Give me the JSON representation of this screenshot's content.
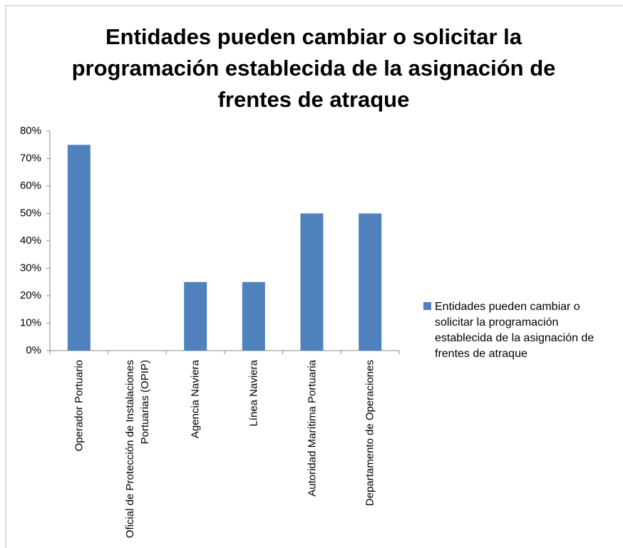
{
  "chart_data": {
    "type": "bar",
    "title": "Entidades pueden cambiar o solicitar la programación establecida de la asignación de frentes de atraque",
    "categories": [
      "Operador Portuario",
      "Oficial de Protección de Instalaciones Portuarias (OPIP)",
      "Agencia Naviera",
      "Línea Naviera",
      "Autoridad Marítima Portuaria",
      "Departamento de Operaciones"
    ],
    "series": [
      {
        "name": "Entidades pueden cambiar o solicitar la programación establecida de la asignación de frentes de atraque",
        "color": "#4f81bd",
        "values": [
          75,
          0,
          25,
          25,
          50,
          50
        ]
      }
    ],
    "ylim": [
      0,
      80
    ],
    "yticks": [
      {
        "value": 0,
        "label": "0%"
      },
      {
        "value": 10,
        "label": "10%"
      },
      {
        "value": 20,
        "label": "20%"
      },
      {
        "value": 30,
        "label": "30%"
      },
      {
        "value": 40,
        "label": "40%"
      },
      {
        "value": 50,
        "label": "50%"
      },
      {
        "value": 60,
        "label": "60%"
      },
      {
        "value": 70,
        "label": "70%"
      },
      {
        "value": 80,
        "label": "80%"
      }
    ],
    "grid": false,
    "legend": "right"
  }
}
